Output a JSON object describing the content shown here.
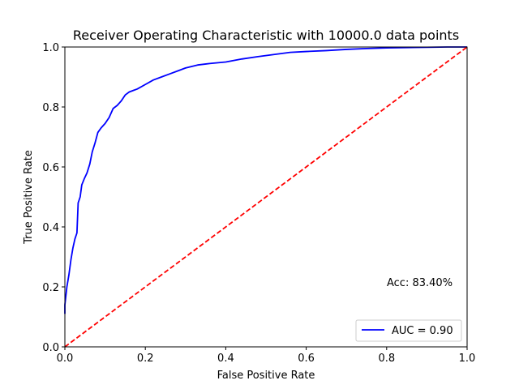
{
  "chart_data": {
    "type": "line",
    "title": "Receiver Operating Characteristic with 10000.0 data points",
    "xlabel": "False Positive Rate",
    "ylabel": "True Positive Rate",
    "xlim": [
      0.0,
      1.0
    ],
    "ylim": [
      0.0,
      1.0
    ],
    "xticks": [
      "0.0",
      "0.2",
      "0.4",
      "0.6",
      "0.8",
      "1.0"
    ],
    "yticks": [
      "0.0",
      "0.2",
      "0.4",
      "0.6",
      "0.8",
      "1.0"
    ],
    "grid": false,
    "legend_position": "lower-right",
    "annotation": "Acc: 83.40%",
    "series": [
      {
        "name": "AUC = 0.90",
        "color": "#0000ff",
        "style": "solid",
        "x": [
          0.0,
          0.0,
          0.005,
          0.01,
          0.015,
          0.02,
          0.025,
          0.03,
          0.033,
          0.038,
          0.042,
          0.048,
          0.055,
          0.062,
          0.068,
          0.075,
          0.082,
          0.09,
          0.1,
          0.11,
          0.12,
          0.13,
          0.14,
          0.15,
          0.16,
          0.17,
          0.18,
          0.2,
          0.22,
          0.24,
          0.26,
          0.28,
          0.3,
          0.33,
          0.36,
          0.4,
          0.44,
          0.48,
          0.52,
          0.56,
          0.6,
          0.65,
          0.7,
          0.75,
          0.8,
          0.85,
          0.9,
          0.95,
          1.0
        ],
        "y": [
          0.11,
          0.14,
          0.2,
          0.24,
          0.29,
          0.33,
          0.36,
          0.38,
          0.48,
          0.5,
          0.54,
          0.56,
          0.58,
          0.61,
          0.65,
          0.68,
          0.715,
          0.73,
          0.745,
          0.765,
          0.795,
          0.805,
          0.82,
          0.84,
          0.85,
          0.855,
          0.86,
          0.875,
          0.89,
          0.9,
          0.91,
          0.92,
          0.93,
          0.94,
          0.945,
          0.95,
          0.96,
          0.968,
          0.975,
          0.982,
          0.985,
          0.988,
          0.992,
          0.995,
          0.997,
          0.998,
          0.999,
          1.0,
          1.0
        ]
      },
      {
        "name": "",
        "color": "#ff0000",
        "style": "dashed",
        "x": [
          0.0,
          1.0
        ],
        "y": [
          0.0,
          1.0
        ]
      }
    ]
  }
}
